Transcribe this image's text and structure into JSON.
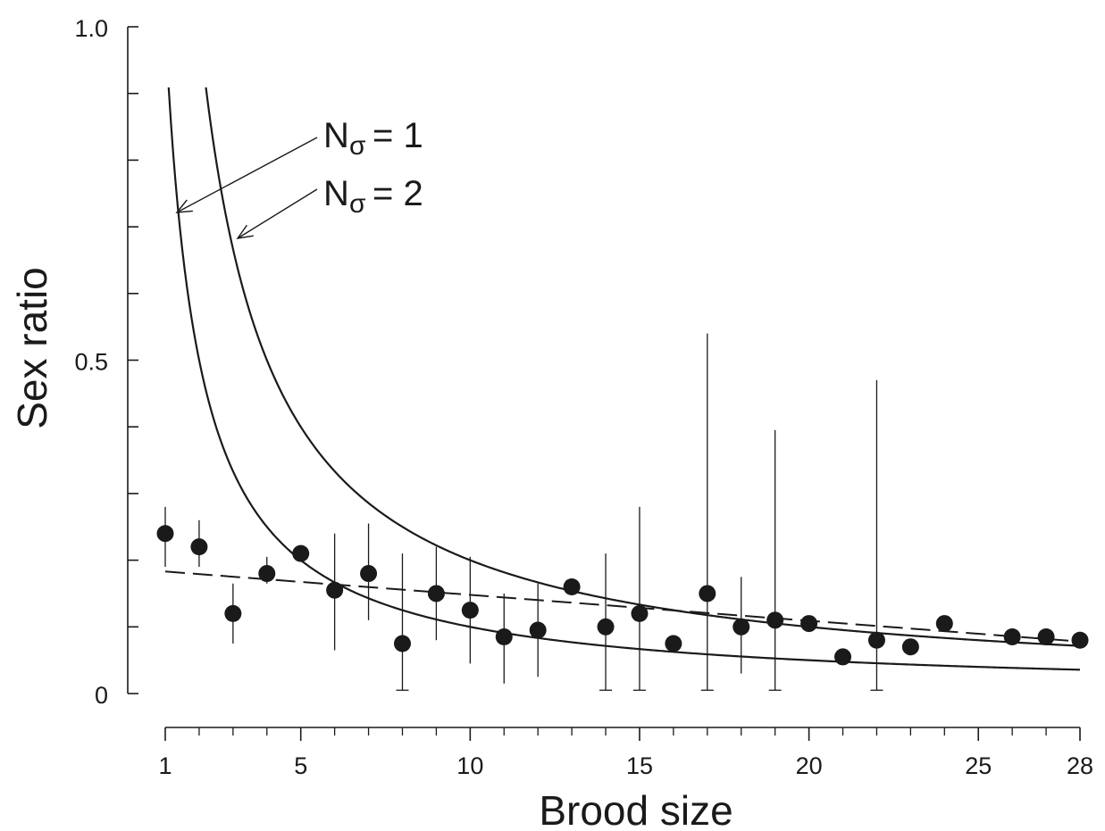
{
  "chart_data": {
    "type": "scatter",
    "title": "",
    "xlabel": "Brood size",
    "ylabel": "Sex ratio",
    "xlim": [
      1,
      28
    ],
    "ylim": [
      0,
      1
    ],
    "x_ticks_major": [
      1,
      5,
      10,
      15,
      20,
      25,
      28
    ],
    "x_tick_labels": [
      "1",
      "5",
      "10",
      "15",
      "20",
      "25",
      "28"
    ],
    "x_ticks_minor": [
      2,
      3,
      4,
      6,
      7,
      8,
      9,
      11,
      12,
      13,
      14,
      16,
      17,
      18,
      19,
      21,
      22,
      23,
      24,
      26,
      27
    ],
    "y_ticks": [
      0,
      0.1,
      0.2,
      0.3,
      0.4,
      0.5,
      0.6,
      0.7,
      0.8,
      0.9,
      1.0
    ],
    "y_tick_labels": [
      {
        "value": 0,
        "label": "0"
      },
      {
        "value": 0.5,
        "label": "0.5"
      },
      {
        "value": 1.0,
        "label": "1.0"
      }
    ],
    "grid": false,
    "legend": "none",
    "points": [
      {
        "x": 1,
        "y": 0.24,
        "lo": 0.19,
        "hi": 0.28
      },
      {
        "x": 2,
        "y": 0.22,
        "lo": 0.19,
        "hi": 0.26
      },
      {
        "x": 3,
        "y": 0.12,
        "lo": 0.075,
        "hi": 0.165
      },
      {
        "x": 4,
        "y": 0.18,
        "lo": 0.165,
        "hi": 0.205
      },
      {
        "x": 5,
        "y": 0.21,
        "lo": null,
        "hi": null
      },
      {
        "x": 6,
        "y": 0.155,
        "lo": 0.065,
        "hi": 0.24
      },
      {
        "x": 7,
        "y": 0.18,
        "lo": 0.11,
        "hi": 0.255
      },
      {
        "x": 8,
        "y": 0.075,
        "lo": 0.005,
        "hi": 0.21
      },
      {
        "x": 9,
        "y": 0.15,
        "lo": 0.08,
        "hi": 0.22
      },
      {
        "x": 10,
        "y": 0.125,
        "lo": 0.045,
        "hi": 0.205
      },
      {
        "x": 11,
        "y": 0.085,
        "lo": 0.015,
        "hi": 0.15
      },
      {
        "x": 12,
        "y": 0.095,
        "lo": 0.025,
        "hi": 0.165
      },
      {
        "x": 13,
        "y": 0.16,
        "lo": null,
        "hi": null
      },
      {
        "x": 14,
        "y": 0.1,
        "lo": 0.005,
        "hi": 0.21
      },
      {
        "x": 15,
        "y": 0.12,
        "lo": 0.005,
        "hi": 0.28
      },
      {
        "x": 16,
        "y": 0.075,
        "lo": null,
        "hi": null
      },
      {
        "x": 17,
        "y": 0.15,
        "lo": 0.005,
        "hi": 0.54
      },
      {
        "x": 18,
        "y": 0.1,
        "lo": 0.03,
        "hi": 0.175
      },
      {
        "x": 19,
        "y": 0.11,
        "lo": 0.005,
        "hi": 0.395
      },
      {
        "x": 20,
        "y": 0.105,
        "lo": null,
        "hi": null
      },
      {
        "x": 21,
        "y": 0.055,
        "lo": null,
        "hi": null
      },
      {
        "x": 22,
        "y": 0.08,
        "lo": 0.005,
        "hi": 0.47
      },
      {
        "x": 23,
        "y": 0.07,
        "lo": null,
        "hi": null
      },
      {
        "x": 24,
        "y": 0.105,
        "lo": null,
        "hi": null
      },
      {
        "x": 26,
        "y": 0.085,
        "lo": null,
        "hi": null
      },
      {
        "x": 27,
        "y": 0.085,
        "lo": null,
        "hi": null
      },
      {
        "x": 28,
        "y": 0.08,
        "lo": null,
        "hi": null
      }
    ],
    "curves": [
      {
        "style": "solid",
        "label": "N♂ = 1",
        "formula": "y = 1/x",
        "x_start": 1.1,
        "x_end": 28
      },
      {
        "style": "solid",
        "label": "N♂ = 2",
        "formula": "y = 2/x",
        "x_start": 2.2,
        "x_end": 28
      },
      {
        "style": "dashed",
        "formula": "linear trend",
        "x0": 1,
        "y0": 0.183,
        "x1": 28,
        "y1": 0.078
      }
    ],
    "annotations": [
      {
        "n_text": "N",
        "sub_text": "σ",
        "eq_text": "= 1",
        "points_to_curve": 0
      },
      {
        "n_text": "N",
        "sub_text": "σ",
        "eq_text": "= 2",
        "points_to_curve": 1
      }
    ]
  }
}
